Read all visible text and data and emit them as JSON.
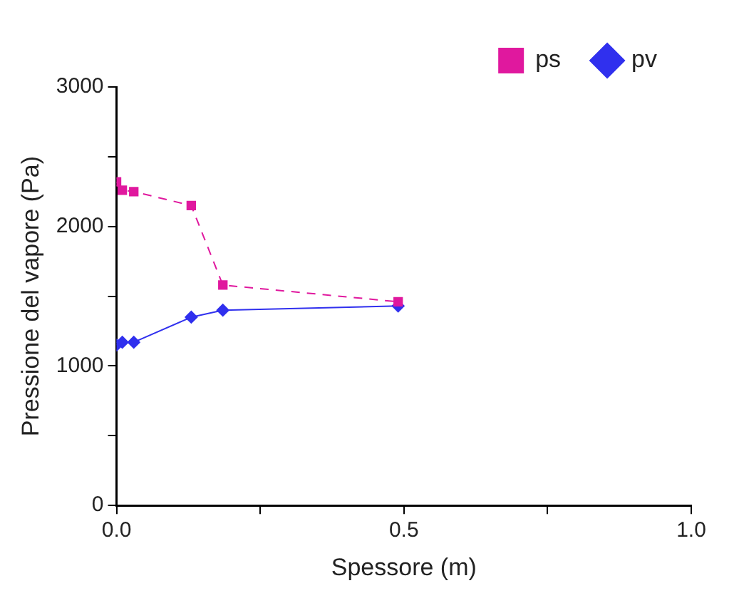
{
  "chart_data": {
    "type": "line",
    "xlabel": "Spessore (m)",
    "ylabel": "Pressione del vapore (Pa)",
    "xlim": [
      0,
      1
    ],
    "xticks": [
      {
        "value": 0,
        "label": "0.0"
      },
      {
        "value": 0.25,
        "label": null
      },
      {
        "value": 0.5,
        "label": "0.5"
      },
      {
        "value": 0.75,
        "label": null
      },
      {
        "value": 1,
        "label": "1.0"
      }
    ],
    "ylim": [
      0,
      3000
    ],
    "yticks": [
      0,
      {
        "value": 500,
        "label": null
      },
      1000,
      {
        "value": 1500,
        "label": null
      },
      2000,
      {
        "value": 2500,
        "label": null
      },
      3000
    ],
    "grid": false,
    "legend": "top right",
    "series": [
      {
        "name": "ps",
        "color": "#e0189e",
        "marker": "square",
        "line_style": "dashed",
        "x": [
          0,
          0.01,
          0.03,
          0.13,
          0.185,
          0.49
        ],
        "values": [
          2320,
          2260,
          2250,
          2150,
          1580,
          1460
        ]
      },
      {
        "name": "pv",
        "color": "#3030ee",
        "marker": "diamond",
        "line_style": "solid",
        "x": [
          0,
          0.01,
          0.03,
          0.13,
          0.185,
          0.49
        ],
        "values": [
          1150,
          1170,
          1170,
          1350,
          1400,
          1430
        ]
      }
    ]
  }
}
